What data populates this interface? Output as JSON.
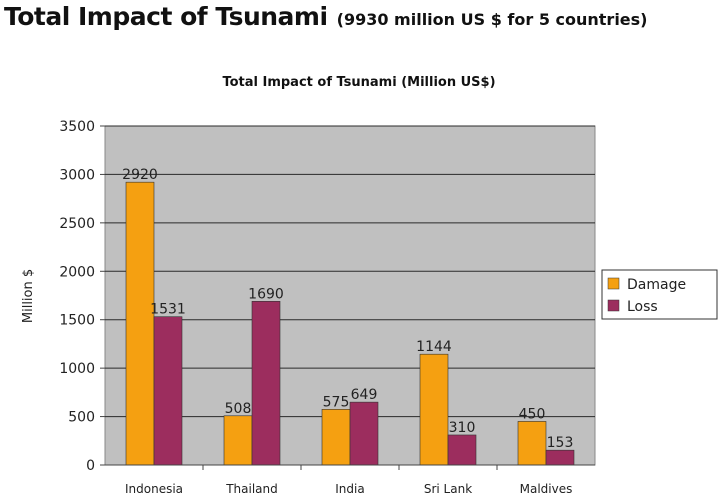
{
  "slide": {
    "title": "Total Impact of Tsunami",
    "subtitle": "(9930 million US $ for 5 countries)"
  },
  "chart_data": {
    "type": "bar",
    "title": "Total Impact of Tsunami (Million US$)",
    "xlabel": "",
    "ylabel": "Million $",
    "categories": [
      "Indonesia",
      "Thailand",
      "India",
      "Sri Lank",
      "Maldives"
    ],
    "series": [
      {
        "name": "Damage",
        "values": [
          2920,
          508,
          575,
          1144,
          450
        ],
        "color": "#F5A011"
      },
      {
        "name": "Loss",
        "values": [
          1531,
          1690,
          649,
          310,
          153
        ],
        "color": "#9C2D5E"
      }
    ],
    "ylim": [
      0,
      3500
    ],
    "yticks": [
      0,
      500,
      1000,
      1500,
      2000,
      2500,
      3000,
      3500
    ],
    "grid": true,
    "legend": "right",
    "plot_background": "#C0C0C0"
  }
}
